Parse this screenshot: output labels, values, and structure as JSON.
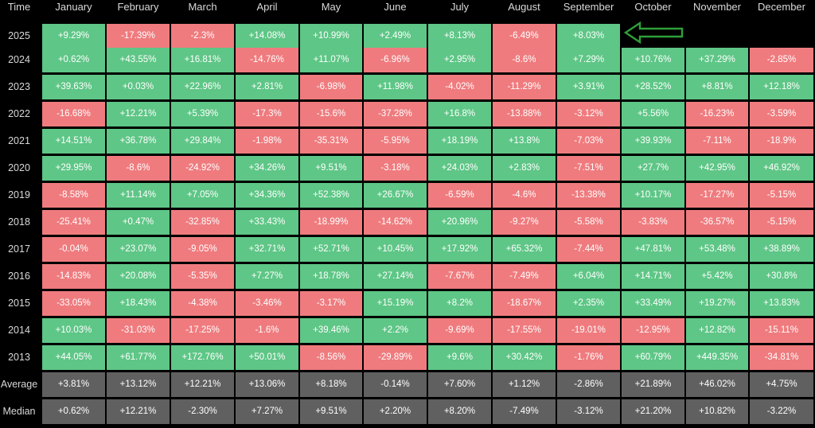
{
  "header": {
    "corner": "Time",
    "months": [
      "January",
      "February",
      "March",
      "April",
      "May",
      "June",
      "July",
      "August",
      "September",
      "October",
      "November",
      "December"
    ]
  },
  "colors": {
    "positive": "#5ec686",
    "negative": "#ef7b7e",
    "summary": "#606060",
    "arrow": "#2e9f3a"
  },
  "arrow_icon": "left-arrow-outline-icon",
  "chart_data": {
    "type": "table",
    "columns": [
      "January",
      "February",
      "March",
      "April",
      "May",
      "June",
      "July",
      "August",
      "September",
      "October",
      "November",
      "December"
    ],
    "rows": [
      {
        "label": "2025",
        "values": [
          "+9.29%",
          "-17.39%",
          "-2.3%",
          "+14.08%",
          "+10.99%",
          "+2.49%",
          "+8.13%",
          "-6.49%",
          "+8.03%",
          null,
          null,
          null
        ]
      },
      {
        "label": "2024",
        "values": [
          "+0.62%",
          "+43.55%",
          "+16.81%",
          "-14.76%",
          "+11.07%",
          "-6.96%",
          "+2.95%",
          "-8.6%",
          "+7.29%",
          "+10.76%",
          "+37.29%",
          "-2.85%"
        ]
      },
      {
        "label": "2023",
        "values": [
          "+39.63%",
          "+0.03%",
          "+22.96%",
          "+2.81%",
          "-6.98%",
          "+11.98%",
          "-4.02%",
          "-11.29%",
          "+3.91%",
          "+28.52%",
          "+8.81%",
          "+12.18%"
        ]
      },
      {
        "label": "2022",
        "values": [
          "-16.68%",
          "+12.21%",
          "+5.39%",
          "-17.3%",
          "-15.6%",
          "-37.28%",
          "+16.8%",
          "-13.88%",
          "-3.12%",
          "+5.56%",
          "-16.23%",
          "-3.59%"
        ]
      },
      {
        "label": "2021",
        "values": [
          "+14.51%",
          "+36.78%",
          "+29.84%",
          "-1.98%",
          "-35.31%",
          "-5.95%",
          "+18.19%",
          "+13.8%",
          "-7.03%",
          "+39.93%",
          "-7.11%",
          "-18.9%"
        ]
      },
      {
        "label": "2020",
        "values": [
          "+29.95%",
          "-8.6%",
          "-24.92%",
          "+34.26%",
          "+9.51%",
          "-3.18%",
          "+24.03%",
          "+2.83%",
          "-7.51%",
          "+27.7%",
          "+42.95%",
          "+46.92%"
        ]
      },
      {
        "label": "2019",
        "values": [
          "-8.58%",
          "+11.14%",
          "+7.05%",
          "+34.36%",
          "+52.38%",
          "+26.67%",
          "-6.59%",
          "-4.6%",
          "-13.38%",
          "+10.17%",
          "-17.27%",
          "-5.15%"
        ]
      },
      {
        "label": "2018",
        "values": [
          "-25.41%",
          "+0.47%",
          "-32.85%",
          "+33.43%",
          "-18.99%",
          "-14.62%",
          "+20.96%",
          "-9.27%",
          "-5.58%",
          "-3.83%",
          "-36.57%",
          "-5.15%"
        ]
      },
      {
        "label": "2017",
        "values": [
          "-0.04%",
          "+23.07%",
          "-9.05%",
          "+32.71%",
          "+52.71%",
          "+10.45%",
          "+17.92%",
          "+65.32%",
          "-7.44%",
          "+47.81%",
          "+53.48%",
          "+38.89%"
        ]
      },
      {
        "label": "2016",
        "values": [
          "-14.83%",
          "+20.08%",
          "-5.35%",
          "+7.27%",
          "+18.78%",
          "+27.14%",
          "-7.67%",
          "-7.49%",
          "+6.04%",
          "+14.71%",
          "+5.42%",
          "+30.8%"
        ]
      },
      {
        "label": "2015",
        "values": [
          "-33.05%",
          "+18.43%",
          "-4.38%",
          "-3.46%",
          "-3.17%",
          "+15.19%",
          "+8.2%",
          "-18.67%",
          "+2.35%",
          "+33.49%",
          "+19.27%",
          "+13.83%"
        ]
      },
      {
        "label": "2014",
        "values": [
          "+10.03%",
          "-31.03%",
          "-17.25%",
          "-1.6%",
          "+39.46%",
          "+2.2%",
          "-9.69%",
          "-17.55%",
          "-19.01%",
          "-12.95%",
          "+12.82%",
          "-15.11%"
        ]
      },
      {
        "label": "2013",
        "values": [
          "+44.05%",
          "+61.77%",
          "+172.76%",
          "+50.01%",
          "-8.56%",
          "-29.89%",
          "+9.6%",
          "+30.42%",
          "-1.76%",
          "+60.79%",
          "+449.35%",
          "-34.81%"
        ]
      }
    ],
    "summary_rows": [
      {
        "label": "Average",
        "values": [
          "+3.81%",
          "+13.12%",
          "+12.21%",
          "+13.06%",
          "+8.18%",
          "-0.14%",
          "+7.60%",
          "+1.12%",
          "-2.86%",
          "+21.89%",
          "+46.02%",
          "+4.75%"
        ]
      },
      {
        "label": "Median",
        "values": [
          "+0.62%",
          "+12.21%",
          "-2.30%",
          "+7.27%",
          "+9.51%",
          "+2.20%",
          "+8.20%",
          "-7.49%",
          "-3.12%",
          "+21.20%",
          "+10.82%",
          "-3.22%"
        ]
      }
    ]
  }
}
